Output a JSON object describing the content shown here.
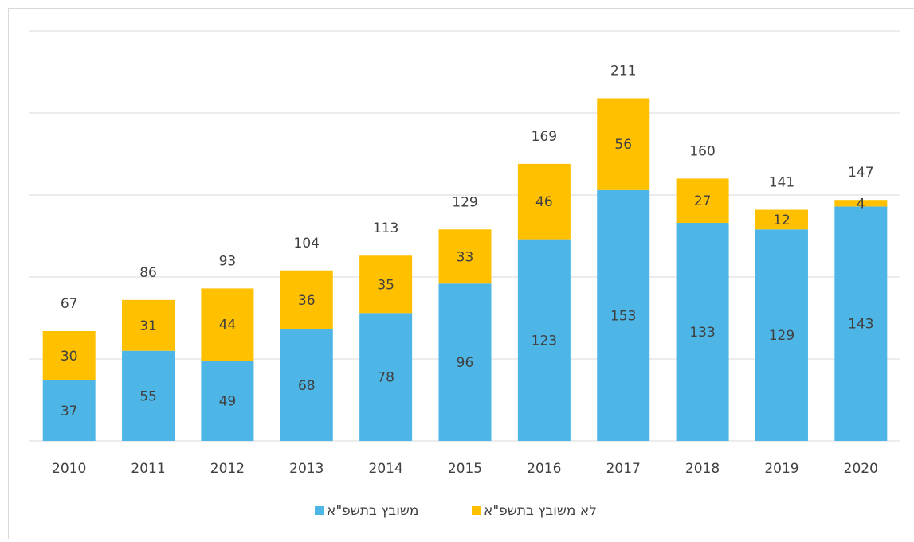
{
  "chart_data": {
    "type": "stacked_bar",
    "categories": [
      "2010",
      "2011",
      "2012",
      "2013",
      "2014",
      "2015",
      "2016",
      "2017",
      "2018",
      "2019",
      "2020"
    ],
    "series": [
      {
        "name": "משובץ בתשפ\"א",
        "color": "#4db6e6",
        "values": [
          37,
          55,
          49,
          68,
          78,
          96,
          123,
          153,
          133,
          129,
          143
        ]
      },
      {
        "name": "לא משובץ בתשפ\"א",
        "color": "#ffc000",
        "values": [
          30,
          31,
          44,
          36,
          35,
          33,
          46,
          56,
          27,
          12,
          4
        ]
      }
    ],
    "totals": [
      67,
      86,
      93,
      104,
      113,
      129,
      169,
      211,
      160,
      141,
      147
    ],
    "ylim": [
      0,
      250
    ],
    "yticks": [
      0,
      50,
      100,
      150,
      200,
      250
    ],
    "grid": true
  }
}
